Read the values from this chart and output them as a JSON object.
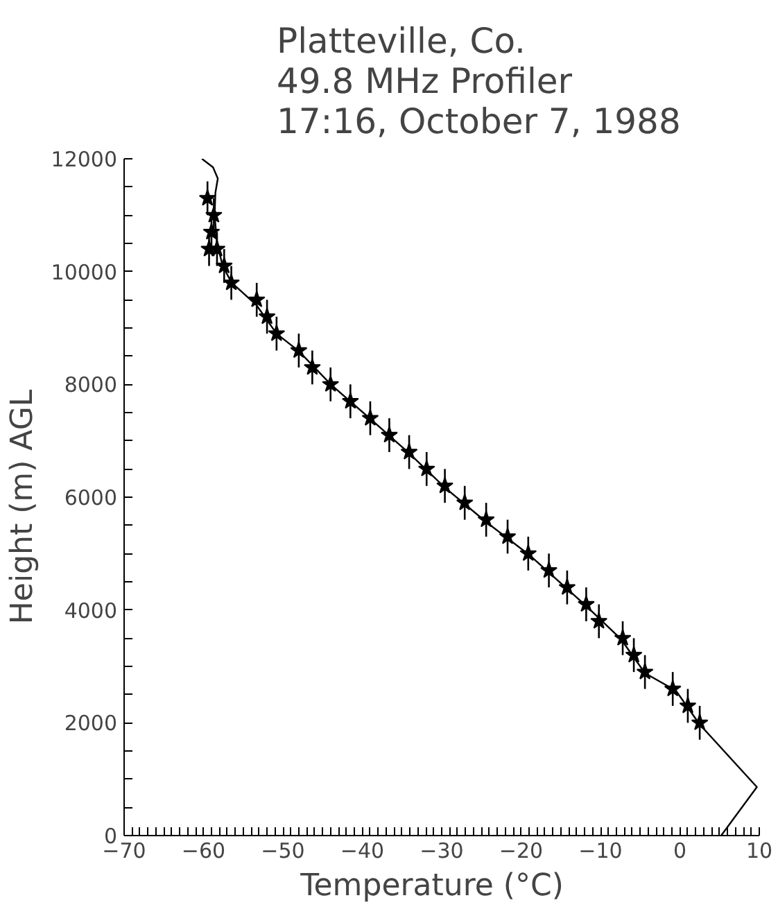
{
  "chart_data": {
    "type": "scatter",
    "title": "Platteville, Co.\n49.8 MHz Profiler\n17:16, October 7, 1988",
    "xlabel": "Temperature   (°C)",
    "ylabel": "Height  (m)  AGL",
    "xlim": [
      -70,
      10
    ],
    "ylim": [
      0,
      12000
    ],
    "xticks": [
      -70,
      -60,
      -50,
      -40,
      -30,
      -20,
      -10,
      0,
      10,
      {
        "value": -69,
        "label": null
      },
      {
        "value": -68,
        "label": null
      },
      {
        "value": -67,
        "label": null
      },
      {
        "value": -66,
        "label": null
      },
      {
        "value": -65,
        "label": null
      },
      {
        "value": -64,
        "label": null
      },
      {
        "value": -63,
        "label": null
      },
      {
        "value": -62,
        "label": null
      },
      {
        "value": -61,
        "label": null
      },
      {
        "value": -59,
        "label": null
      },
      {
        "value": -58,
        "label": null
      },
      {
        "value": -57,
        "label": null
      },
      {
        "value": -56,
        "label": null
      },
      {
        "value": -55,
        "label": null
      },
      {
        "value": -54,
        "label": null
      },
      {
        "value": -53,
        "label": null
      },
      {
        "value": -52,
        "label": null
      },
      {
        "value": -51,
        "label": null
      },
      {
        "value": -49,
        "label": null
      },
      {
        "value": -48,
        "label": null
      },
      {
        "value": -47,
        "label": null
      },
      {
        "value": -46,
        "label": null
      },
      {
        "value": -45,
        "label": null
      },
      {
        "value": -44,
        "label": null
      },
      {
        "value": -43,
        "label": null
      },
      {
        "value": -42,
        "label": null
      },
      {
        "value": -41,
        "label": null
      },
      {
        "value": -39,
        "label": null
      },
      {
        "value": -38,
        "label": null
      },
      {
        "value": -37,
        "label": null
      },
      {
        "value": -36,
        "label": null
      },
      {
        "value": -35,
        "label": null
      },
      {
        "value": -34,
        "label": null
      },
      {
        "value": -33,
        "label": null
      },
      {
        "value": -32,
        "label": null
      },
      {
        "value": -31,
        "label": null
      },
      {
        "value": -29,
        "label": null
      },
      {
        "value": -28,
        "label": null
      },
      {
        "value": -27,
        "label": null
      },
      {
        "value": -26,
        "label": null
      },
      {
        "value": -25,
        "label": null
      },
      {
        "value": -24,
        "label": null
      },
      {
        "value": -23,
        "label": null
      },
      {
        "value": -22,
        "label": null
      },
      {
        "value": -21,
        "label": null
      },
      {
        "value": -19,
        "label": null
      },
      {
        "value": -18,
        "label": null
      },
      {
        "value": -17,
        "label": null
      },
      {
        "value": -16,
        "label": null
      },
      {
        "value": -15,
        "label": null
      },
      {
        "value": -14,
        "label": null
      },
      {
        "value": -13,
        "label": null
      },
      {
        "value": -12,
        "label": null
      },
      {
        "value": -11,
        "label": null
      },
      {
        "value": -9,
        "label": null
      },
      {
        "value": -8,
        "label": null
      },
      {
        "value": -7,
        "label": null
      },
      {
        "value": -6,
        "label": null
      },
      {
        "value": -5,
        "label": null
      },
      {
        "value": -4,
        "label": null
      },
      {
        "value": -3,
        "label": null
      },
      {
        "value": -2,
        "label": null
      },
      {
        "value": -1,
        "label": null
      },
      {
        "value": 1,
        "label": null
      },
      {
        "value": 2,
        "label": null
      },
      {
        "value": 3,
        "label": null
      },
      {
        "value": 4,
        "label": null
      },
      {
        "value": 5,
        "label": null
      },
      {
        "value": 6,
        "label": null
      },
      {
        "value": 7,
        "label": null
      },
      {
        "value": 8,
        "label": null
      },
      {
        "value": 9,
        "label": null
      }
    ],
    "yticks": [
      0,
      2000,
      4000,
      6000,
      8000,
      10000,
      12000,
      {
        "value": 500,
        "label": null
      },
      {
        "value": 1000,
        "label": null
      },
      {
        "value": 1500,
        "label": null
      },
      {
        "value": 2500,
        "label": null
      },
      {
        "value": 3000,
        "label": null
      },
      {
        "value": 3500,
        "label": null
      },
      {
        "value": 4500,
        "label": null
      },
      {
        "value": 5000,
        "label": null
      },
      {
        "value": 5500,
        "label": null
      },
      {
        "value": 6500,
        "label": null
      },
      {
        "value": 7000,
        "label": null
      },
      {
        "value": 7500,
        "label": null
      },
      {
        "value": 8500,
        "label": null
      },
      {
        "value": 9000,
        "label": null
      },
      {
        "value": 9500,
        "label": null
      },
      {
        "value": 10500,
        "label": null
      },
      {
        "value": 11000,
        "label": null
      },
      {
        "value": 11500,
        "label": null
      }
    ],
    "grid": false,
    "series": [
      {
        "type": "line",
        "color": "#000000",
        "marker": "none",
        "line_style": "solid",
        "x": [
          5.2,
          9.7,
          2.5,
          -0.5,
          -4.4,
          -7.4,
          -11.8,
          -19,
          -24.4,
          -29.6,
          -34.1,
          -39,
          -43.9,
          -48,
          -50.8,
          -53.3,
          -56.5,
          -57.6,
          -58.3,
          -58.6,
          -58.5,
          -58.2,
          -58.8,
          -60.2
        ],
        "values": [
          0,
          860,
          1970,
          2570,
          2880,
          3480,
          4070,
          4980,
          5560,
          6170,
          6780,
          7390,
          7990,
          8590,
          8900,
          9400,
          9810,
          10110,
          10500,
          11000,
          11400,
          11650,
          11850,
          12000
        ]
      },
      {
        "color": "#000000",
        "marker": "star",
        "x": [
          -59.5,
          -58.7,
          -59.0,
          -59.3,
          -58.3,
          -57.4,
          -56.5,
          -53.3,
          -52.0,
          -50.8,
          -48.0,
          -46.3,
          -44.0,
          -41.5,
          -39.0,
          -36.6,
          -34.1,
          -31.9,
          -29.6,
          -27.1,
          -24.4,
          -21.7,
          -19.1,
          -16.5,
          -14.2,
          -11.8,
          -10.2,
          -7.2,
          -5.8,
          -4.4,
          -0.9,
          1.0,
          2.5
        ],
        "values": [
          11300,
          11000,
          10700,
          10400,
          10400,
          10100,
          9800,
          9500,
          9200,
          8900,
          8600,
          8300,
          8000,
          7700,
          7400,
          7100,
          6800,
          6500,
          6200,
          5900,
          5600,
          5300,
          5000,
          4700,
          4400,
          4100,
          3800,
          3500,
          3200,
          2900,
          2600,
          2300,
          2000
        ],
        "errors": [
          300,
          300,
          300,
          300,
          300,
          300,
          300,
          300,
          300,
          300,
          300,
          300,
          300,
          300,
          300,
          300,
          300,
          300,
          300,
          300,
          300,
          300,
          300,
          300,
          300,
          300,
          300,
          300,
          300,
          300,
          300,
          300,
          300
        ]
      }
    ]
  }
}
